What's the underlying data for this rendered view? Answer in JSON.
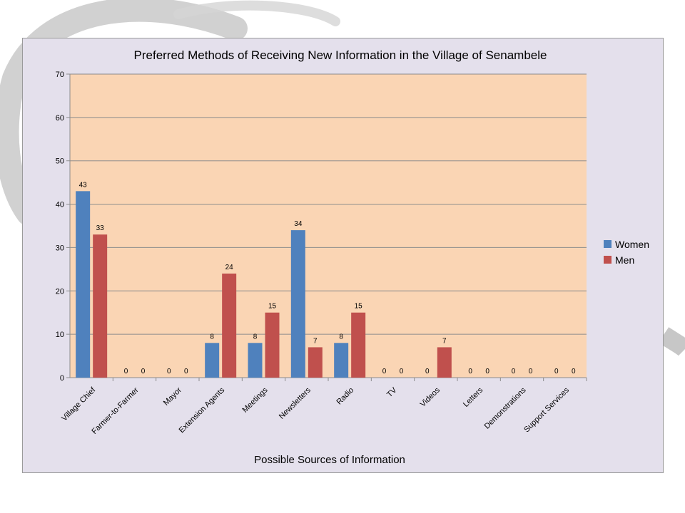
{
  "chart_data": {
    "type": "bar",
    "title": "Preferred Methods of Receiving New Information in the Village of Senambele",
    "xlabel": "Possible Sources of Information",
    "ylabel": "",
    "ylim": [
      0,
      70
    ],
    "yticks": [
      0,
      10,
      20,
      30,
      40,
      50,
      60,
      70
    ],
    "grid": true,
    "legend_position": "right",
    "categories": [
      "Village Chief",
      "Farmer-to-Farmer",
      "Mayor",
      "Extension Agents",
      "Meetings",
      "Newsletters",
      "Radio",
      "TV",
      "Videos",
      "Letters",
      "Demonstrations",
      "Support Services"
    ],
    "series": [
      {
        "name": "Women",
        "color": "#4f81bd",
        "values": [
          43,
          0,
          0,
          8,
          8,
          34,
          8,
          0,
          0,
          0,
          0,
          0
        ]
      },
      {
        "name": "Men",
        "color": "#c0504d",
        "values": [
          33,
          0,
          0,
          24,
          15,
          7,
          15,
          0,
          7,
          0,
          0,
          0
        ]
      }
    ],
    "plot_background": "#fad5b4",
    "chart_background": "#e4e0ec"
  }
}
